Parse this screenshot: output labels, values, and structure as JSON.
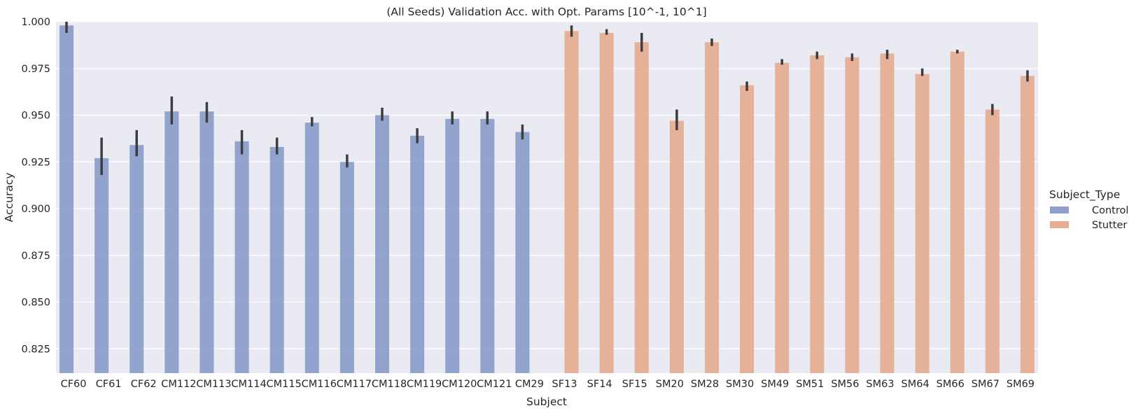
{
  "chart_data": {
    "type": "bar",
    "title": "(All Seeds) Validation Acc. with Opt. Params [10^-1, 10^1]",
    "xlabel": "Subject",
    "ylabel": "Accuracy",
    "ylim": [
      0.812,
      1.0
    ],
    "yticks": [
      "0.825",
      "0.850",
      "0.875",
      "0.900",
      "0.925",
      "0.950",
      "0.975",
      "1.000"
    ],
    "ytick_values": [
      0.825,
      0.85,
      0.875,
      0.9,
      0.925,
      0.95,
      0.975,
      1.0
    ],
    "grid": true,
    "legend": {
      "title": "Subject_Type",
      "placement": "right",
      "entries": [
        {
          "label": "Control",
          "color": "#8da0cb"
        },
        {
          "label": "Stutter",
          "color": "#e5ae94"
        }
      ]
    },
    "categories": [
      "CF60",
      "CF61",
      "CF62",
      "CM112",
      "CM113",
      "CM114",
      "CM115",
      "CM116",
      "CM117",
      "CM118",
      "CM119",
      "CM120",
      "CM121",
      "CM29",
      "SF13",
      "SF14",
      "SF15",
      "SM20",
      "SM28",
      "SM30",
      "SM49",
      "SM51",
      "SM56",
      "SM63",
      "SM64",
      "SM66",
      "SM67",
      "SM69"
    ],
    "series": [
      {
        "name": "Control",
        "color": "#8da0cb",
        "values": [
          0.998,
          0.927,
          0.934,
          0.952,
          0.952,
          0.936,
          0.933,
          0.946,
          0.925,
          0.95,
          0.939,
          0.948,
          0.948,
          0.941,
          null,
          null,
          null,
          null,
          null,
          null,
          null,
          null,
          null,
          null,
          null,
          null,
          null,
          null
        ],
        "err_low": [
          0.994,
          0.918,
          0.928,
          0.945,
          0.946,
          0.929,
          0.929,
          0.944,
          0.922,
          0.947,
          0.935,
          0.945,
          0.945,
          0.937,
          null,
          null,
          null,
          null,
          null,
          null,
          null,
          null,
          null,
          null,
          null,
          null,
          null,
          null
        ],
        "err_high": [
          1.0,
          0.938,
          0.942,
          0.96,
          0.957,
          0.942,
          0.938,
          0.949,
          0.929,
          0.954,
          0.943,
          0.952,
          0.952,
          0.945,
          null,
          null,
          null,
          null,
          null,
          null,
          null,
          null,
          null,
          null,
          null,
          null,
          null,
          null
        ]
      },
      {
        "name": "Stutter",
        "color": "#e5ae94",
        "values": [
          null,
          null,
          null,
          null,
          null,
          null,
          null,
          null,
          null,
          null,
          null,
          null,
          null,
          null,
          0.995,
          0.994,
          0.989,
          0.947,
          0.989,
          0.966,
          0.978,
          0.982,
          0.981,
          0.983,
          0.972,
          0.984,
          0.953,
          0.971
        ],
        "err_low": [
          null,
          null,
          null,
          null,
          null,
          null,
          null,
          null,
          null,
          null,
          null,
          null,
          null,
          null,
          0.992,
          0.993,
          0.984,
          0.942,
          0.987,
          0.963,
          0.977,
          0.98,
          0.979,
          0.98,
          0.971,
          0.983,
          0.95,
          0.968
        ],
        "err_high": [
          null,
          null,
          null,
          null,
          null,
          null,
          null,
          null,
          null,
          null,
          null,
          null,
          null,
          null,
          0.998,
          0.996,
          0.994,
          0.953,
          0.991,
          0.968,
          0.98,
          0.984,
          0.983,
          0.985,
          0.975,
          0.985,
          0.956,
          0.974
        ]
      }
    ]
  }
}
